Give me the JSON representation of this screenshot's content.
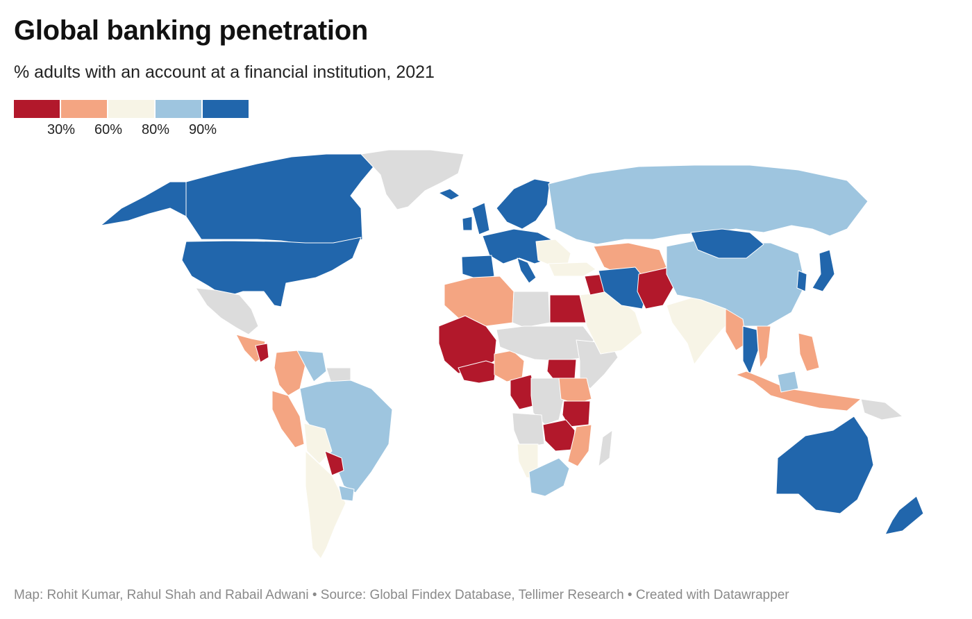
{
  "header": {
    "title": "Global banking penetration",
    "subtitle": "% adults with an account at a financial institution, 2021"
  },
  "legend": {
    "colors": [
      "#b2182b",
      "#f4a582",
      "#f7f4e6",
      "#9ec5df",
      "#2166ac"
    ],
    "ticks": [
      "30%",
      "60%",
      "80%",
      "90%"
    ]
  },
  "colors": {
    "no_data": "#dcdcdc",
    "border": "#ffffff",
    "background": "#ffffff"
  },
  "map": {
    "regions": [
      {
        "name": "canada",
        "bucket": 4
      },
      {
        "name": "usa",
        "bucket": 4
      },
      {
        "name": "alaska",
        "bucket": 4
      },
      {
        "name": "greenland",
        "bucket": -1
      },
      {
        "name": "mexico",
        "bucket": -1
      },
      {
        "name": "central-america",
        "bucket": 1
      },
      {
        "name": "nicaragua",
        "bucket": 0
      },
      {
        "name": "colombia",
        "bucket": 1
      },
      {
        "name": "venezuela",
        "bucket": 3
      },
      {
        "name": "guyana",
        "bucket": -1
      },
      {
        "name": "peru",
        "bucket": 1
      },
      {
        "name": "brazil",
        "bucket": 3
      },
      {
        "name": "bolivia",
        "bucket": 2
      },
      {
        "name": "paraguay",
        "bucket": 0
      },
      {
        "name": "argentina-chile",
        "bucket": 2
      },
      {
        "name": "uruguay",
        "bucket": 3
      },
      {
        "name": "iceland",
        "bucket": 4
      },
      {
        "name": "uk",
        "bucket": 4
      },
      {
        "name": "ireland",
        "bucket": 4
      },
      {
        "name": "scandinavia",
        "bucket": 4
      },
      {
        "name": "western-europe",
        "bucket": 4
      },
      {
        "name": "iberia",
        "bucket": 4
      },
      {
        "name": "italy",
        "bucket": 4
      },
      {
        "name": "eastern-europe",
        "bucket": 2
      },
      {
        "name": "turkey",
        "bucket": 2
      },
      {
        "name": "russia",
        "bucket": 3
      },
      {
        "name": "kazakhstan-central-asia",
        "bucket": 1
      },
      {
        "name": "morocco-algeria",
        "bucket": 1
      },
      {
        "name": "libya",
        "bucket": -1
      },
      {
        "name": "egypt",
        "bucket": 0
      },
      {
        "name": "sahel-west",
        "bucket": 0
      },
      {
        "name": "west-africa",
        "bucket": 0
      },
      {
        "name": "nigeria",
        "bucket": 1
      },
      {
        "name": "chad-niger-sudan",
        "bucket": -1
      },
      {
        "name": "south-sudan",
        "bucket": 0
      },
      {
        "name": "horn-of-africa",
        "bucket": -1
      },
      {
        "name": "central-africa",
        "bucket": 0
      },
      {
        "name": "drc",
        "bucket": -1
      },
      {
        "name": "kenya-uganda",
        "bucket": 1
      },
      {
        "name": "tanzania",
        "bucket": 0
      },
      {
        "name": "zambia-malawi",
        "bucket": 0
      },
      {
        "name": "mozambique",
        "bucket": 1
      },
      {
        "name": "angola",
        "bucket": -1
      },
      {
        "name": "namibia",
        "bucket": 2
      },
      {
        "name": "south-africa",
        "bucket": 3
      },
      {
        "name": "madagascar",
        "bucket": -1
      },
      {
        "name": "arabian-peninsula",
        "bucket": 2
      },
      {
        "name": "iraq",
        "bucket": 0
      },
      {
        "name": "iran",
        "bucket": 4
      },
      {
        "name": "afghanistan-pakistan",
        "bucket": 0
      },
      {
        "name": "india",
        "bucket": 2
      },
      {
        "name": "china",
        "bucket": 3
      },
      {
        "name": "mongolia",
        "bucket": 4
      },
      {
        "name": "japan",
        "bucket": 4
      },
      {
        "name": "korea",
        "bucket": 4
      },
      {
        "name": "myanmar",
        "bucket": 1
      },
      {
        "name": "thailand",
        "bucket": 4
      },
      {
        "name": "vietnam",
        "bucket": 1
      },
      {
        "name": "indonesia",
        "bucket": 1
      },
      {
        "name": "philippines",
        "bucket": 1
      },
      {
        "name": "borneo-malaysia",
        "bucket": 3
      },
      {
        "name": "papua-new-guinea",
        "bucket": -1
      },
      {
        "name": "australia",
        "bucket": 4
      },
      {
        "name": "new-zealand",
        "bucket": 4
      }
    ]
  },
  "footer": {
    "credit": "Map: Rohit Kumar, Rahul Shah and Rabail Adwani • Source: Global Findex Database, Tellimer Research • Created with Datawrapper"
  }
}
